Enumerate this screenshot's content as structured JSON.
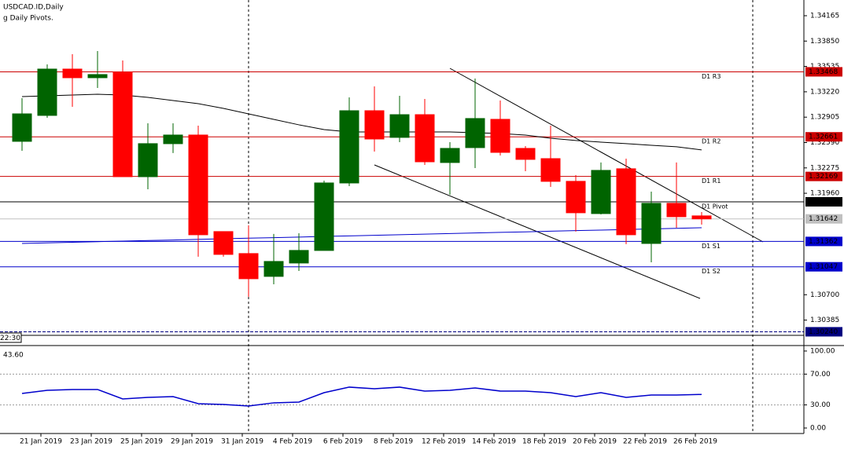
{
  "chart_data": {
    "type": "candlestick",
    "title": "USDCAD.ID,Daily",
    "subtitle": "g Daily Pivots.",
    "time_label": "22:30",
    "categories": [
      null,
      "21 Jan 2019",
      null,
      "23 Jan 2019",
      null,
      "25 Jan 2019",
      null,
      "29 Jan 2019",
      null,
      "31 Jan 2019",
      null,
      "4 Feb 2019",
      null,
      "6 Feb 2019",
      null,
      "8 Feb 2019",
      null,
      "12 Feb 2019",
      null,
      "14 Feb 2019",
      null,
      "18 Feb 2019",
      null,
      "20 Feb 2019",
      null,
      "22 Feb 2019",
      null,
      "26 Feb 2019"
    ],
    "open": [
      1.32605,
      1.32927,
      1.33502,
      1.33395,
      1.33463,
      1.32166,
      1.32576,
      1.32683,
      1.31484,
      1.31211,
      1.30928,
      1.31094,
      1.3125,
      1.32088,
      1.32985,
      1.32654,
      1.32936,
      1.32342,
      1.32527,
      1.32878,
      1.32517,
      1.3239,
      1.32108,
      1.31708,
      1.32264,
      1.31337,
      1.31835,
      1.31679
    ],
    "high": [
      1.33141,
      1.3356,
      1.33687,
      1.33726,
      1.33609,
      1.32829,
      1.32829,
      1.328,
      1.31445,
      1.31562,
      1.31455,
      1.31464,
      1.32117,
      1.33151,
      1.33287,
      1.3317,
      1.33131,
      1.32595,
      1.33385,
      1.33112,
      1.32546,
      1.328,
      1.32186,
      1.32342,
      1.3239,
      1.31981,
      1.32342,
      1.31727
    ],
    "low": [
      1.32488,
      1.32897,
      1.33034,
      1.33268,
      1.32166,
      1.3201,
      1.32459,
      1.31172,
      1.31172,
      1.30675,
      1.3083,
      1.30996,
      1.3125,
      1.32049,
      1.32478,
      1.32595,
      1.32312,
      1.31942,
      1.32273,
      1.32429,
      1.32234,
      1.32039,
      1.31484,
      1.31698,
      1.31328,
      1.31103,
      1.31532,
      1.31571
    ],
    "close": [
      1.32946,
      1.33502,
      1.33395,
      1.33434,
      1.32166,
      1.32576,
      1.32683,
      1.31445,
      1.31201,
      1.30899,
      1.31113,
      1.3125,
      1.32088,
      1.32985,
      1.32634,
      1.32936,
      1.32351,
      1.32517,
      1.32888,
      1.32468,
      1.32381,
      1.32108,
      1.31718,
      1.32244,
      1.31445,
      1.31835,
      1.31669,
      1.31642
    ],
    "up_color": "#006400",
    "down_color": "#ff0000",
    "overlays": [
      {
        "color": "#000000",
        "values": [
          1.33161,
          1.3317,
          1.3318,
          1.3319,
          1.3318,
          1.33151,
          1.33112,
          1.33073,
          1.33014,
          1.32946,
          1.32878,
          1.3281,
          1.32751,
          1.32722,
          1.32722,
          1.32722,
          1.32722,
          1.32722,
          1.32712,
          1.32702,
          1.32683,
          1.32644,
          1.32615,
          1.32595,
          1.32576,
          1.32556,
          1.32537,
          1.32498
        ]
      },
      {
        "color": "#0000cc",
        "values": [
          1.31337,
          1.31344,
          1.31351,
          1.31359,
          1.31366,
          1.31373,
          1.3138,
          1.31388,
          1.31395,
          1.31402,
          1.31409,
          1.31416,
          1.31424,
          1.31431,
          1.31438,
          1.31445,
          1.31453,
          1.3146,
          1.31467,
          1.31474,
          1.31481,
          1.31489,
          1.31496,
          1.31503,
          1.3151,
          1.31517,
          1.31525,
          1.31532
        ]
      }
    ],
    "levels": [
      {
        "name": "D1 R3",
        "value": 1.33468,
        "color": "#cc0000"
      },
      {
        "name": "D1 R2",
        "value": 1.32661,
        "color": "#cc0000"
      },
      {
        "name": "D1 R1",
        "value": 1.32169,
        "color": "#cc0000"
      },
      {
        "name": "D1 Pivot",
        "value": 1.31854,
        "color": "#000000"
      },
      {
        "value": 1.31642,
        "color": "#c0c0c0"
      },
      {
        "name": "D1 S1",
        "value": 1.31362,
        "color": "#0000cc"
      },
      {
        "name": "D1 S2",
        "value": 1.31047,
        "color": "#0000cc"
      },
      {
        "value": 1.3024,
        "value_label": "1.30240",
        "color": "#000080"
      }
    ],
    "ylim": [
      1.30225,
      1.3436
    ],
    "yticks": [
      1.34165,
      {
        "value": 1.3385,
        "label": "1.33850"
      },
      1.33535,
      {
        "value": 1.3322,
        "label": "1.33220"
      },
      1.32905,
      {
        "value": 1.3259,
        "label": "1.32590"
      },
      1.32275,
      {
        "value": 1.3196,
        "label": "1.31960"
      },
      {
        "value": 1.307,
        "label": "1.30700"
      },
      1.30385
    ],
    "rsi": {
      "current": {
        "value": 43.6,
        "label": "43.60"
      },
      "color": "#0000cc",
      "values": [
        44.9,
        49.0,
        50.0,
        50.0,
        37.8,
        39.8,
        40.8,
        31.6,
        30.6,
        28.6,
        32.7,
        33.7,
        45.9,
        53.1,
        51.0,
        53.1,
        48.0,
        49.0,
        52.0,
        48.0,
        48.0,
        45.9,
        40.8,
        45.9,
        39.8,
        42.9,
        42.9,
        43.6
      ],
      "ylim": [
        -5.1,
        107.1
      ],
      "yticks": [
        {
          "value": 100,
          "label": "100.00"
        },
        {
          "value": 70,
          "label": "70.00"
        },
        {
          "value": 30,
          "label": "30.00"
        },
        {
          "value": 0,
          "label": "0.00"
        }
      ],
      "dotted": [
        70,
        30
      ]
    }
  }
}
